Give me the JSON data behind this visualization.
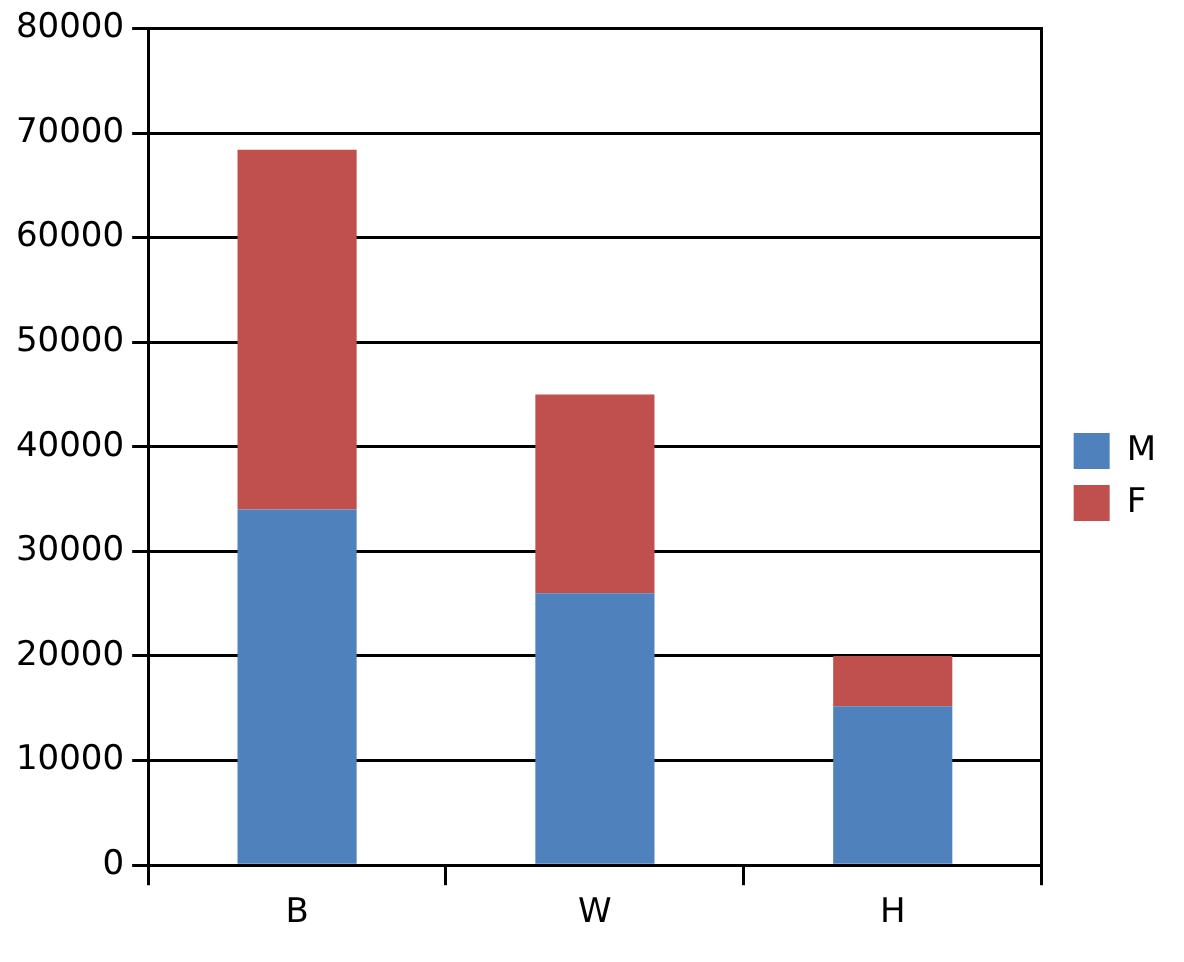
{
  "chart_data": {
    "type": "bar",
    "stacked": true,
    "categories": [
      "B",
      "W",
      "H"
    ],
    "series": [
      {
        "name": "M",
        "color": "#4f81bd",
        "values": [
          34000,
          26000,
          15200
        ]
      },
      {
        "name": "F",
        "color": "#c0504d",
        "values": [
          34400,
          19000,
          4800
        ]
      }
    ],
    "ylim": [
      0,
      80000
    ],
    "yticks": [
      0,
      10000,
      20000,
      30000,
      40000,
      50000,
      60000,
      70000,
      80000
    ],
    "grid": "y",
    "legend": "right"
  }
}
